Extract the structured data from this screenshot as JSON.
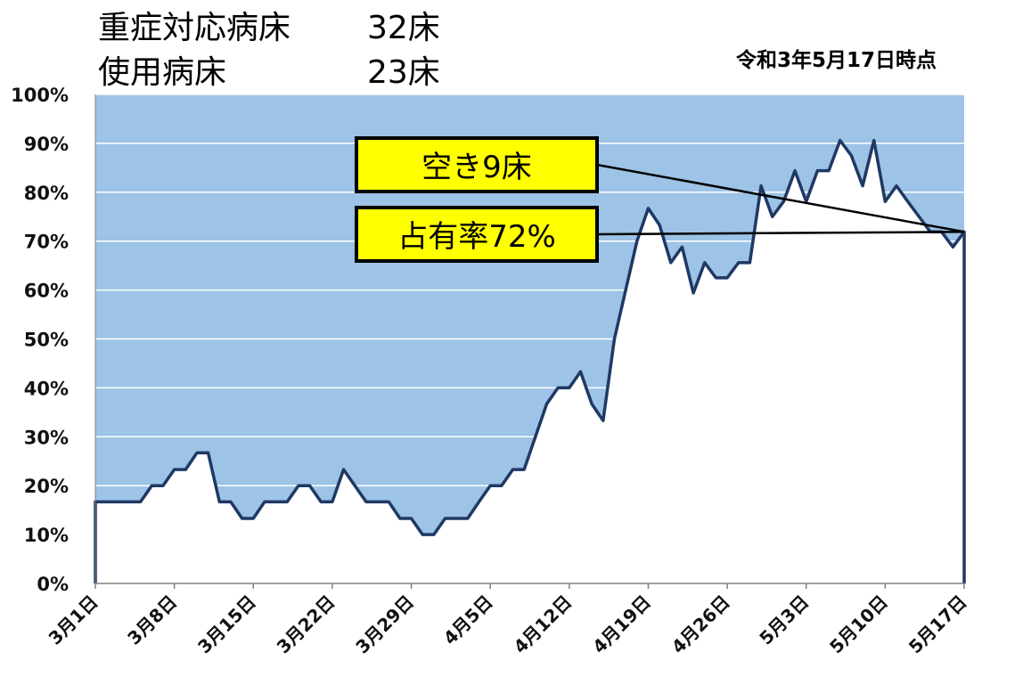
{
  "header": {
    "row1": {
      "label": "重症対応病床",
      "value": "32床"
    },
    "row2": {
      "label": "使用病床",
      "value": "23床"
    }
  },
  "as_of": "令和3年5月17日時点",
  "callouts": [
    {
      "text": "空き9床"
    },
    {
      "text": "占有率72%"
    }
  ],
  "colors": {
    "area_fill": "#9dc3e6",
    "line": "#1f3864",
    "callout_fill": "#ffff00",
    "callout_border": "#000000",
    "grid": "#ffffff"
  },
  "chart_data": {
    "type": "area",
    "title": "",
    "xlabel": "",
    "ylabel": "",
    "ylim": [
      0,
      100
    ],
    "y_ticks": [
      "0%",
      "10%",
      "20%",
      "30%",
      "40%",
      "50%",
      "60%",
      "70%",
      "80%",
      "90%",
      "100%"
    ],
    "x_tick_labels": [
      "3月1日",
      "3月8日",
      "3月15日",
      "3月22日",
      "3月29日",
      "4月5日",
      "4月12日",
      "4月19日",
      "4月26日",
      "5月3日",
      "5月10日",
      "5月17日"
    ],
    "x_tick_every_days": 7,
    "grid": true,
    "legend": "none",
    "values": [
      16.7,
      16.7,
      16.7,
      16.7,
      16.7,
      20,
      20,
      23.3,
      23.3,
      26.7,
      26.7,
      16.7,
      16.7,
      13.3,
      13.3,
      16.7,
      16.7,
      16.7,
      20,
      20,
      16.7,
      16.7,
      23.3,
      20,
      16.7,
      16.7,
      16.7,
      13.3,
      13.3,
      10,
      10,
      13.3,
      13.3,
      13.3,
      16.7,
      20,
      20,
      23.3,
      23.3,
      30,
      36.7,
      40,
      40,
      43.3,
      36.7,
      33.3,
      50,
      60,
      70,
      76.7,
      73.3,
      65.6,
      68.8,
      59.4,
      65.6,
      62.5,
      62.5,
      65.6,
      65.6,
      81.3,
      75,
      78.1,
      84.4,
      78.1,
      84.4,
      84.4,
      90.6,
      87.5,
      81.3,
      90.6,
      78.1,
      81.3,
      78.1,
      75,
      71.9,
      71.9,
      68.8,
      71.9
    ]
  }
}
